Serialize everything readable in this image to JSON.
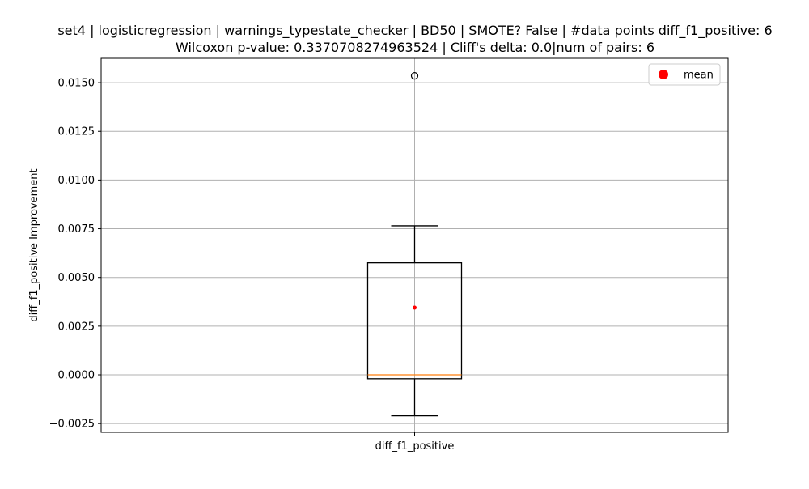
{
  "chart_data": {
    "type": "box",
    "title": "set4 | logisticregression | warnings_typestate_checker | BD50 | SMOTE? False | #data points diff_f1_positive: 6",
    "subtitle": "Wilcoxon p-value: 0.3370708274963524 | Cliff's delta: 0.0|num of pairs: 6",
    "xlabel": "",
    "ylabel": "diff_f1_positive Improvement",
    "categories": [
      "diff_f1_positive"
    ],
    "ylim": [
      -0.00295,
      0.01625
    ],
    "yticks": [
      -0.0025,
      0.0,
      0.0025,
      0.005,
      0.0075,
      0.01,
      0.0125,
      0.015
    ],
    "ytick_labels": [
      "−0.0025",
      "0.0000",
      "0.0025",
      "0.0050",
      "0.0075",
      "0.0100",
      "0.0125",
      "0.0150"
    ],
    "grid": true,
    "legend": {
      "entries": [
        "mean"
      ],
      "placement": "top-right"
    },
    "boxes": [
      {
        "name": "diff_f1_positive",
        "whisker_low": -0.0021,
        "q1": -0.0002,
        "median": 0.0,
        "q3": 0.00575,
        "whisker_high": 0.00765,
        "mean": 0.00345,
        "outliers": [
          0.01535
        ]
      }
    ],
    "colors": {
      "box": "#000000",
      "median": "#ff7f0e",
      "mean": "#ff0000",
      "grid": "#b0b0b0"
    }
  }
}
